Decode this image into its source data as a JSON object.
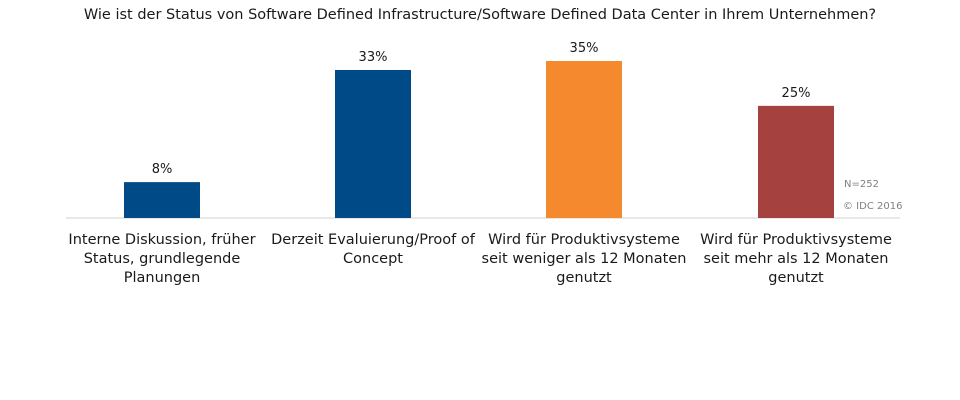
{
  "chart_data": {
    "type": "bar",
    "title": "Wie ist der Status von Software Defined Infrastructure/Software Defined Data Center in Ihrem Unternehmen?",
    "categories": [
      [
        "Interne Diskussion, früher",
        "Status, grundlegende",
        "Planungen"
      ],
      [
        "Derzeit Evaluierung/Proof of",
        "Concept"
      ],
      [
        "Wird für Produktivsysteme",
        "seit weniger als 12 Monaten",
        "genutzt"
      ],
      [
        "Wird für Produktivsysteme",
        "seit mehr als 12 Monaten",
        "genutzt"
      ]
    ],
    "values": [
      8,
      33,
      35,
      25
    ],
    "data_labels": [
      "8%",
      "33%",
      "35%",
      "25%"
    ],
    "bar_colors": [
      "#004b87",
      "#004b87",
      "#f5892d",
      "#a5413f"
    ],
    "ylim": [
      0,
      35
    ],
    "grid": false,
    "legend": "none",
    "xlabel": "",
    "ylabel": ""
  },
  "notes": {
    "sample_size": "N=252",
    "source": "© IDC 2016"
  },
  "colors": {
    "axis": "#d0d0d0",
    "text": "#1a1a1a",
    "note": "#7f7f7f"
  }
}
